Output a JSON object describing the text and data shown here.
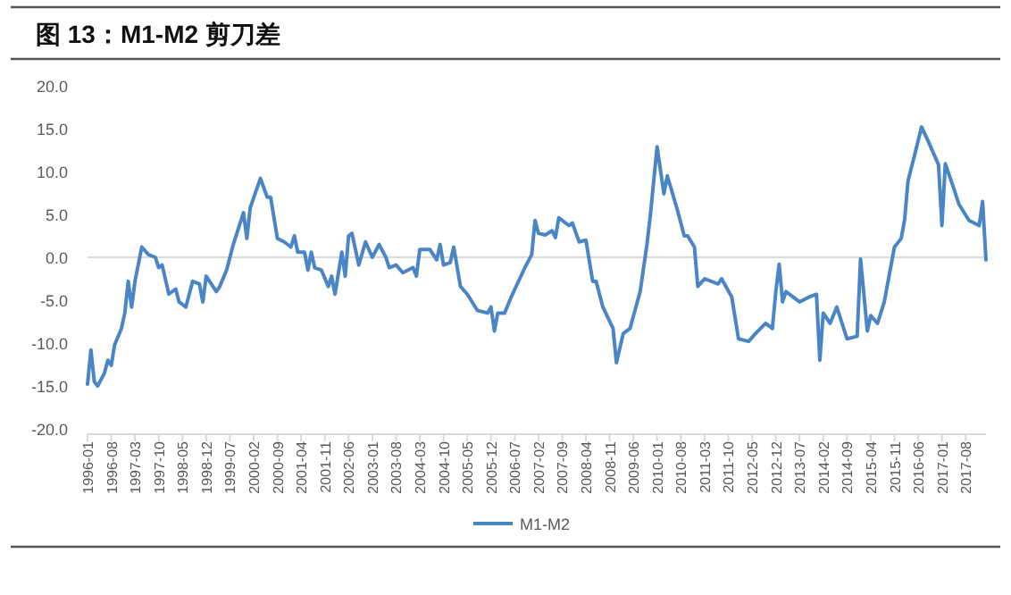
{
  "chart_data": {
    "type": "line",
    "title": "图 13：M1-M2 剪刀差",
    "x": [
      "1996-01",
      "1996-02",
      "1996-03",
      "1996-04",
      "1996-06",
      "1996-07",
      "1996-08",
      "1996-09",
      "1996-11",
      "1996-12",
      "1997-01",
      "1997-02",
      "1997-03",
      "1997-05",
      "1997-07",
      "1997-09",
      "1997-10",
      "1997-11",
      "1998-01",
      "1998-03",
      "1998-04",
      "1998-06",
      "1998-08",
      "1998-10",
      "1998-11",
      "1998-12",
      "1999-03",
      "1999-04",
      "1999-06",
      "1999-08",
      "1999-11",
      "1999-12",
      "2000-01",
      "2000-04",
      "2000-06",
      "2000-07",
      "2000-09",
      "2000-11",
      "2001-01",
      "2001-02",
      "2001-03",
      "2001-05",
      "2001-06",
      "2001-07",
      "2001-08",
      "2001-10",
      "2001-12",
      "2002-01",
      "2002-02",
      "2002-04",
      "2002-05",
      "2002-06",
      "2002-07",
      "2002-09",
      "2002-11",
      "2003-01",
      "2003-03",
      "2003-05",
      "2003-06",
      "2003-08",
      "2003-10",
      "2004-01",
      "2004-02",
      "2004-03",
      "2004-06",
      "2004-08",
      "2004-09",
      "2004-10",
      "2004-12",
      "2005-01",
      "2005-03",
      "2005-05",
      "2005-08",
      "2005-11",
      "2005-12",
      "2006-01",
      "2006-02",
      "2006-04",
      "2006-06",
      "2006-10",
      "2006-12",
      "2007-01",
      "2007-02",
      "2007-04",
      "2007-06",
      "2007-07",
      "2007-08",
      "2007-11",
      "2007-12",
      "2008-02",
      "2008-04",
      "2008-06",
      "2008-07",
      "2008-09",
      "2008-12",
      "2009-01",
      "2009-03",
      "2009-05",
      "2009-08",
      "2009-10",
      "2009-11",
      "2010-01",
      "2010-03",
      "2010-04",
      "2010-07",
      "2010-09",
      "2010-10",
      "2010-12",
      "2011-01",
      "2011-03",
      "2011-07",
      "2011-08",
      "2011-11",
      "2012-01",
      "2012-04",
      "2012-06",
      "2012-09",
      "2012-11",
      "2012-12",
      "2013-01",
      "2013-02",
      "2013-03",
      "2013-07",
      "2013-10",
      "2013-12",
      "2014-01",
      "2014-02",
      "2014-04",
      "2014-06",
      "2014-09",
      "2014-12",
      "2015-01",
      "2015-03",
      "2015-04",
      "2015-06",
      "2015-08",
      "2015-11",
      "2016-01",
      "2016-02",
      "2016-03",
      "2016-05",
      "2016-07",
      "2016-09",
      "2016-12",
      "2017-01",
      "2017-02",
      "2017-04",
      "2017-06",
      "2017-09",
      "2017-12",
      "2018-01",
      "2018-02"
    ],
    "series": [
      {
        "name": "M1-M2",
        "color": "#4a86c5",
        "values": [
          -14.8,
          -10.8,
          -14.5,
          -15,
          -13.5,
          -12,
          -12.6,
          -10.2,
          -8.3,
          -6.5,
          -2.8,
          -5.8,
          -2.8,
          1.2,
          0.3,
          0,
          -1.2,
          -0.9,
          -4.3,
          -3.7,
          -5.2,
          -5.8,
          -2.8,
          -3.1,
          -5.2,
          -2.2,
          -4,
          -3.4,
          -1.5,
          1.5,
          5.2,
          2.2,
          5.8,
          9.2,
          7,
          7,
          2.2,
          1.8,
          1.2,
          2.5,
          0.6,
          0.6,
          -1.5,
          0.6,
          -1.2,
          -1.5,
          -3.4,
          -2.2,
          -4.3,
          0.6,
          -2.2,
          2.5,
          2.8,
          -0.9,
          1.8,
          0,
          1.5,
          0,
          -1.2,
          -0.9,
          -1.8,
          -1.2,
          -2.2,
          0.9,
          0.9,
          -0.3,
          1.5,
          -0.9,
          -0.6,
          1.2,
          -3.4,
          -4.3,
          -6.2,
          -6.5,
          -5.8,
          -8.6,
          -6.5,
          -6.5,
          -4.6,
          -1.2,
          0.3,
          4.3,
          2.8,
          2.6,
          3.1,
          2.3,
          4.6,
          3.7,
          4,
          1.8,
          2,
          -2.8,
          -2.8,
          -5.8,
          -8.3,
          -12.3,
          -8.9,
          -8.3,
          -4,
          1.5,
          4.9,
          12.9,
          7.4,
          9.5,
          5.5,
          2.5,
          2.5,
          1.2,
          -3.4,
          -2.5,
          -3.1,
          -2.5,
          -4.6,
          -9.5,
          -9.8,
          -8.9,
          -7.7,
          -8.3,
          -4,
          -0.8,
          -5.2,
          -4,
          -5.2,
          -4.6,
          -4.3,
          -12,
          -6.5,
          -7.7,
          -5.8,
          -9.5,
          -9.2,
          -0.2,
          -8.6,
          -6.8,
          -7.7,
          -5.2,
          1.2,
          2.2,
          4.4,
          8.9,
          12,
          15.2,
          13.5,
          10.8,
          3.7,
          10.9,
          8.6,
          6.2,
          4.3,
          3.7,
          6.5,
          -0.3
        ]
      }
    ],
    "xlim": [
      "1996-01",
      "2018-02"
    ],
    "xticks": [
      "1996-01",
      "1996-08",
      "1997-03",
      "1997-10",
      "1998-05",
      "1998-12",
      "1999-07",
      "2000-02",
      "2000-09",
      "2001-04",
      "2001-11",
      "2002-06",
      "2003-01",
      "2003-08",
      "2004-03",
      "2004-10",
      "2005-05",
      "2005-12",
      "2006-07",
      "2007-02",
      "2007-09",
      "2008-04",
      "2008-11",
      "2009-06",
      "2010-01",
      "2010-08",
      "2011-03",
      "2011-10",
      "2012-05",
      "2012-12",
      "2013-07",
      "2014-02",
      "2014-09",
      "2015-04",
      "2015-11",
      "2016-06",
      "2017-01",
      "2017-08"
    ],
    "ylim": [
      -20,
      20
    ],
    "yticks": [
      {
        "value": -20,
        "label": "-20.0"
      },
      {
        "value": -15,
        "label": "-15.0"
      },
      {
        "value": -10,
        "label": "-10.0"
      },
      {
        "value": -5,
        "label": "-5.0"
      },
      {
        "value": 0,
        "label": "0.0"
      },
      {
        "value": 5,
        "label": "5.0"
      },
      {
        "value": 10,
        "label": "10.0"
      },
      {
        "value": 15,
        "label": "15.0"
      },
      {
        "value": 20,
        "label": "20.0"
      }
    ],
    "legend": "bottom"
  }
}
